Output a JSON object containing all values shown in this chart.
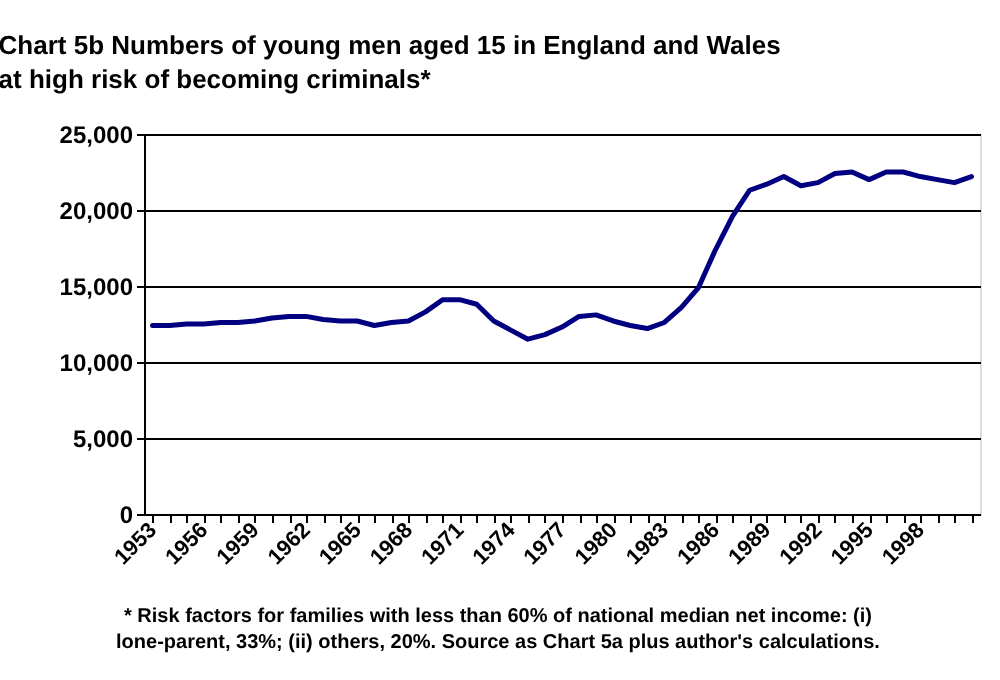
{
  "chart_data": {
    "type": "line",
    "title": "Chart 5b Numbers of young men aged 15 in England and Wales at high risk of becoming criminals*",
    "x": [
      1953,
      1954,
      1955,
      1956,
      1957,
      1958,
      1959,
      1960,
      1961,
      1962,
      1963,
      1964,
      1965,
      1966,
      1967,
      1968,
      1969,
      1970,
      1971,
      1972,
      1973,
      1974,
      1975,
      1976,
      1977,
      1978,
      1979,
      1980,
      1981,
      1982,
      1983,
      1984,
      1985,
      1986,
      1987,
      1988,
      1989,
      1990,
      1991,
      1992,
      1993,
      1994,
      1995,
      1996,
      1997,
      1998,
      1999,
      2000,
      2001
    ],
    "series": [
      {
        "color": "#000080",
        "values": [
          12400,
          12400,
          12500,
          12500,
          12600,
          12600,
          12700,
          12900,
          13000,
          13000,
          12800,
          12700,
          12700,
          12400,
          12600,
          12700,
          13300,
          14100,
          14100,
          13800,
          12700,
          12100,
          11500,
          11800,
          12300,
          13000,
          13100,
          12700,
          12400,
          12200,
          12600,
          13600,
          14900,
          17400,
          19600,
          21300,
          21700,
          22200,
          21600,
          21800,
          22400,
          22500,
          22000,
          22500,
          22500,
          22200,
          22000,
          21800,
          22200
        ]
      }
    ],
    "xlim": [
      1952.5,
      2001.5
    ],
    "xticks": [
      1953,
      {
        "value": 1954,
        "label": null
      },
      {
        "value": 1955,
        "label": null
      },
      1956,
      {
        "value": 1957,
        "label": null
      },
      {
        "value": 1958,
        "label": null
      },
      1959,
      {
        "value": 1960,
        "label": null
      },
      {
        "value": 1961,
        "label": null
      },
      1962,
      {
        "value": 1963,
        "label": null
      },
      {
        "value": 1964,
        "label": null
      },
      1965,
      {
        "value": 1966,
        "label": null
      },
      {
        "value": 1967,
        "label": null
      },
      1968,
      {
        "value": 1969,
        "label": null
      },
      {
        "value": 1970,
        "label": null
      },
      1971,
      {
        "value": 1972,
        "label": null
      },
      {
        "value": 1973,
        "label": null
      },
      1974,
      {
        "value": 1975,
        "label": null
      },
      {
        "value": 1976,
        "label": null
      },
      1977,
      {
        "value": 1978,
        "label": null
      },
      {
        "value": 1979,
        "label": null
      },
      1980,
      {
        "value": 1981,
        "label": null
      },
      {
        "value": 1982,
        "label": null
      },
      1983,
      {
        "value": 1984,
        "label": null
      },
      {
        "value": 1985,
        "label": null
      },
      1986,
      {
        "value": 1987,
        "label": null
      },
      {
        "value": 1988,
        "label": null
      },
      1989,
      {
        "value": 1990,
        "label": null
      },
      {
        "value": 1991,
        "label": null
      },
      1992,
      {
        "value": 1993,
        "label": null
      },
      {
        "value": 1994,
        "label": null
      },
      1995,
      {
        "value": 1996,
        "label": null
      },
      {
        "value": 1997,
        "label": null
      },
      1998,
      {
        "value": 1999,
        "label": null
      },
      {
        "value": 2000,
        "label": null
      },
      {
        "value": 2001,
        "label": null
      }
    ],
    "ylim": [
      0,
      25000
    ],
    "yticks": [
      {
        "value": 0,
        "label": "0"
      },
      {
        "value": 5000,
        "label": "5,000"
      },
      {
        "value": 10000,
        "label": "10,000"
      },
      {
        "value": 15000,
        "label": "15,000"
      },
      {
        "value": 20000,
        "label": "20,000"
      },
      {
        "value": 25000,
        "label": "25,000"
      }
    ],
    "grid": "y",
    "marker": "none",
    "line_style": "solid",
    "annotations": [
      "* Risk factors for families with less than 60% of national median net income: (i) lone-parent, 33%; (ii) others, 20%. Source as Chart 5a plus author's calculations."
    ]
  }
}
